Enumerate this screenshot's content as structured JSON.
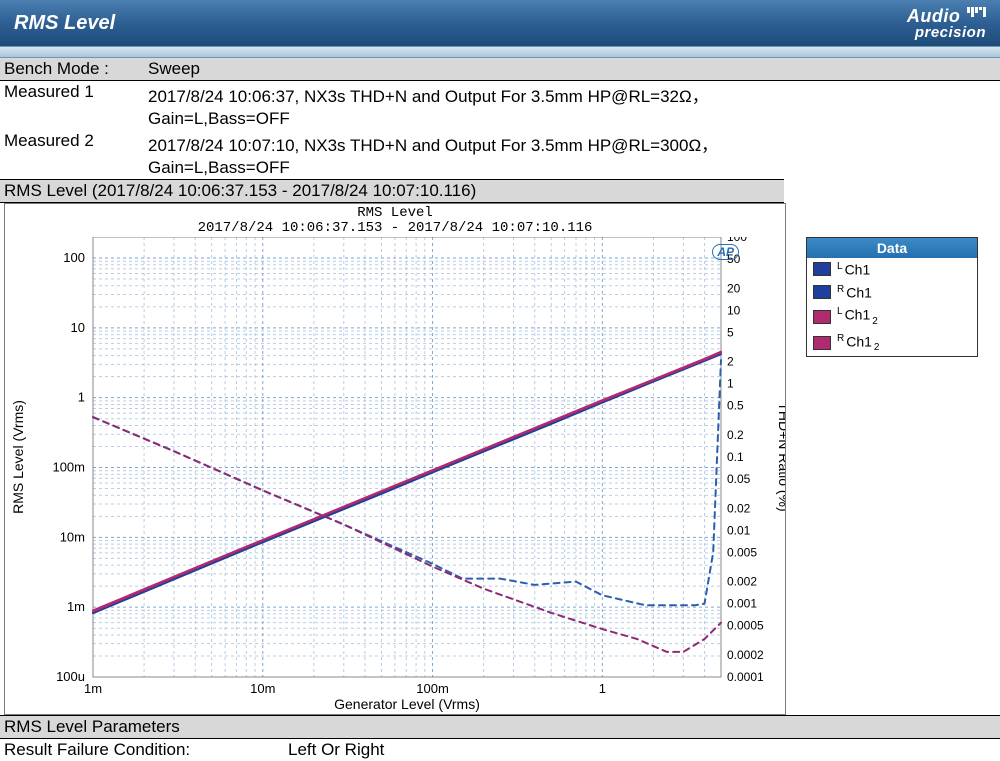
{
  "header": {
    "title": "RMS Level",
    "logo_line1": "Audio",
    "logo_line2": "precision"
  },
  "bench_mode": {
    "label": "Bench Mode :",
    "value": "Sweep"
  },
  "measured": [
    {
      "label": "Measured 1",
      "line1": "2017/8/24 10:06:37, NX3s THD+N and Output For 3.5mm HP@RL=32Ω，",
      "line2": "Gain=L,Bass=OFF"
    },
    {
      "label": "Measured 2",
      "line1": "2017/8/24 10:07:10, NX3s THD+N and Output For 3.5mm HP@RL=300Ω，",
      "line2": "Gain=L,Bass=OFF"
    }
  ],
  "section_title": "RMS Level (2017/8/24 10:06:37.153 - 2017/8/24 10:07:10.116)",
  "chart": {
    "title1": "RMS Level",
    "title2": "2017/8/24 10:06:37.153 - 2017/8/24 10:07:10.116",
    "title_font": "Courier New",
    "title_fontsize": 14,
    "ap_badge": "AP",
    "background_color": "#ffffff",
    "grid_color": "#7ea7cf",
    "grid_dash": "3,3",
    "axis_color": "#aaaaaa",
    "tick_color": "#000000",
    "tick_fontsize": 13,
    "x": {
      "label": "Generator Level (Vrms)",
      "scale": "log",
      "min": 0.001,
      "max": 5,
      "ticks": [
        0.001,
        0.01,
        0.1,
        1
      ],
      "tick_labels": [
        "1m",
        "10m",
        "100m",
        "1"
      ]
    },
    "y_left": {
      "label": "RMS Level (Vrms)",
      "scale": "log",
      "min": 0.0001,
      "max": 200,
      "ticks": [
        0.0001,
        0.001,
        0.01,
        0.1,
        1,
        10,
        100
      ],
      "tick_labels": [
        "100u",
        "1m",
        "10m",
        "100m",
        "1",
        "10",
        "100"
      ]
    },
    "y_right": {
      "label": "THD+N Ratio (%)",
      "scale": "log",
      "min": 0.0001,
      "max": 100,
      "ticks": [
        0.0001,
        0.0002,
        0.0005,
        0.001,
        0.002,
        0.005,
        0.01,
        0.02,
        0.05,
        0.1,
        0.2,
        0.5,
        1,
        2,
        5,
        10,
        20,
        50,
        100
      ],
      "tick_labels": [
        "0.0001",
        "0.0002",
        "0.0005",
        "0.001",
        "0.002",
        "0.005",
        "0.01",
        "0.02",
        "0.05",
        "0.1",
        "0.2",
        "0.5",
        "1",
        "2",
        "5",
        "10",
        "20",
        "50",
        "100"
      ]
    },
    "series": [
      {
        "name": "L-Ch1-RMS",
        "color": "#1e3f9c",
        "width": 2,
        "dash": "",
        "axis": "left",
        "x": [
          0.001,
          0.005,
          0.01,
          0.05,
          0.1,
          0.5,
          1,
          2,
          4,
          5
        ],
        "y": [
          0.00085,
          0.0044,
          0.0088,
          0.044,
          0.088,
          0.44,
          0.88,
          1.76,
          3.5,
          4.4
        ]
      },
      {
        "name": "R-Ch1-RMS",
        "color": "#1e3f9c",
        "width": 2,
        "dash": "",
        "axis": "left",
        "x": [
          0.001,
          0.005,
          0.01,
          0.05,
          0.1,
          0.5,
          1,
          2,
          4,
          5
        ],
        "y": [
          0.00082,
          0.0042,
          0.0085,
          0.042,
          0.085,
          0.42,
          0.85,
          1.7,
          3.35,
          4.2
        ]
      },
      {
        "name": "L-Ch1_2-RMS",
        "color": "#b02a6f",
        "width": 2,
        "dash": "",
        "axis": "left",
        "x": [
          0.001,
          0.005,
          0.01,
          0.05,
          0.1,
          0.5,
          1,
          2,
          4,
          5
        ],
        "y": [
          0.0009,
          0.0046,
          0.0092,
          0.046,
          0.092,
          0.46,
          0.92,
          1.82,
          3.6,
          4.55
        ]
      },
      {
        "name": "R-Ch1_2-RMS",
        "color": "#b02a6f",
        "width": 2,
        "dash": "",
        "axis": "left",
        "x": [
          0.001,
          0.005,
          0.01,
          0.05,
          0.1,
          0.5,
          1,
          2,
          4,
          5
        ],
        "y": [
          0.00087,
          0.0045,
          0.009,
          0.045,
          0.09,
          0.45,
          0.9,
          1.78,
          3.5,
          4.45
        ]
      },
      {
        "name": "L-Ch1-THD",
        "color": "#2a5fb0",
        "width": 2,
        "dash": "6,5",
        "axis": "right",
        "x": [
          0.001,
          0.003,
          0.01,
          0.03,
          0.1,
          0.15,
          0.25,
          0.4,
          0.7,
          1.0,
          1.8,
          3.0,
          3.5,
          4.0,
          4.5,
          5.0
        ],
        "y": [
          0.35,
          0.12,
          0.035,
          0.012,
          0.0035,
          0.0022,
          0.0022,
          0.0018,
          0.002,
          0.0013,
          0.00095,
          0.00095,
          0.00095,
          0.001,
          0.005,
          2.1
        ]
      },
      {
        "name": "L-Ch1_2-THD",
        "color": "#8e2a75",
        "width": 2,
        "dash": "6,5",
        "axis": "right",
        "x": [
          0.001,
          0.003,
          0.01,
          0.03,
          0.1,
          0.2,
          0.5,
          1.0,
          1.6,
          2.4,
          3.0,
          4.0,
          5.0
        ],
        "y": [
          0.35,
          0.12,
          0.035,
          0.012,
          0.0032,
          0.0016,
          0.00075,
          0.00045,
          0.00033,
          0.00022,
          0.00022,
          0.00033,
          0.00055
        ]
      }
    ]
  },
  "legend": {
    "header": "Data",
    "items": [
      {
        "sup": "L",
        "label": "Ch1",
        "sub": "",
        "color": "#1e3f9c"
      },
      {
        "sup": "R",
        "label": "Ch1",
        "sub": "",
        "color": "#1e3f9c"
      },
      {
        "sup": "L",
        "label": "Ch1",
        "sub": "2",
        "color": "#b02a6f"
      },
      {
        "sup": "R",
        "label": "Ch1",
        "sub": "2",
        "color": "#b02a6f"
      }
    ]
  },
  "footer": {
    "params_title": "RMS Level Parameters",
    "fail_label": "Result Failure Condition:",
    "fail_value": "Left Or Right"
  }
}
